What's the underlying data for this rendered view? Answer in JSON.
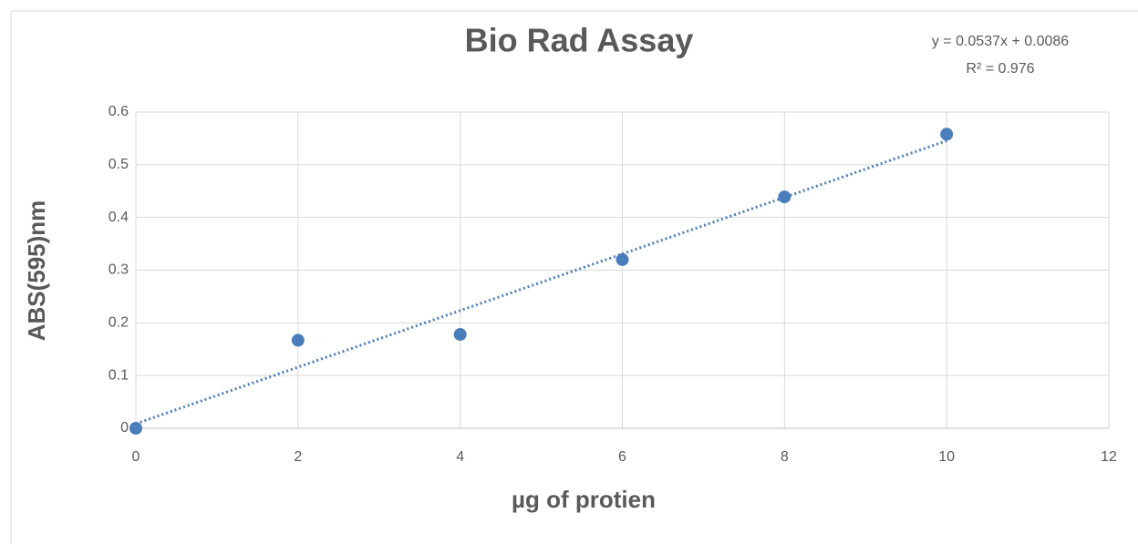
{
  "chart_data": {
    "type": "scatter",
    "title": "Bio Rad Assay",
    "x_label": "µg of protien",
    "y_label": "ABS(595)nm",
    "series": [
      {
        "name": "ABS",
        "color": "#4a7ebb",
        "x": [
          0,
          2,
          4,
          6,
          8,
          10
        ],
        "values": [
          0,
          0.167,
          0.178,
          0.32,
          0.439,
          0.558
        ]
      }
    ],
    "trendline": {
      "slope": 0.0537,
      "intercept": 0.0086,
      "equation": "y = 0.0537x + 0.0086",
      "r_squared": "R² = 0.976"
    },
    "xlim": [
      0,
      12
    ],
    "xticks": [
      0,
      2,
      4,
      6,
      8,
      10,
      12
    ],
    "ylim": [
      0,
      0.6
    ],
    "yticks": [
      0,
      0.1,
      0.2,
      0.3,
      0.4,
      0.5,
      0.6
    ],
    "grid": true
  }
}
